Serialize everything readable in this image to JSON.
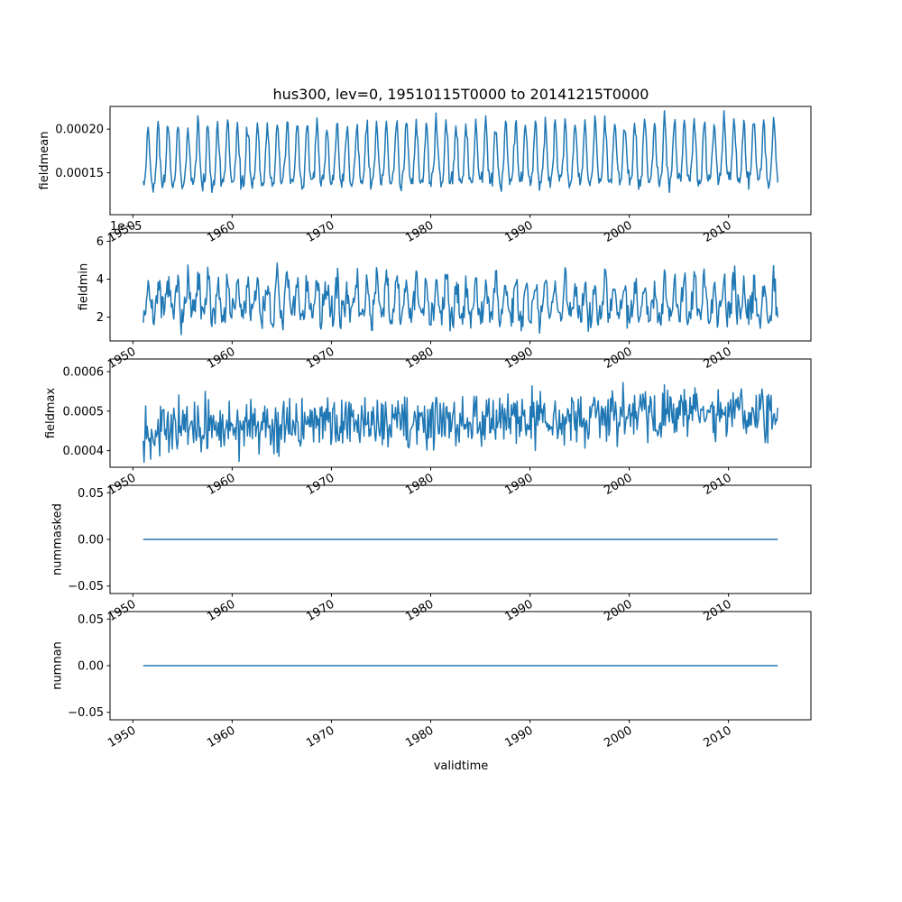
{
  "title": "hus300, lev=0, 19510115T0000 to 20141215T0000",
  "colors": {
    "line": "#1f77b4",
    "axis": "#000000",
    "background": "#ffffff"
  },
  "chart_data": {
    "type": "line",
    "xlabel": "validtime",
    "x": {
      "start": 1951.04,
      "end": 2014.96,
      "samples_per_year": 12,
      "xlim": [
        1947.7,
        2018.3
      ],
      "tick_rotation_deg": 30,
      "xticks": [
        {
          "value": 1950,
          "label": "1950"
        },
        {
          "value": 1960,
          "label": "1960"
        },
        {
          "value": 1970,
          "label": "1970"
        },
        {
          "value": 1980,
          "label": "1980"
        },
        {
          "value": 1990,
          "label": "1990"
        },
        {
          "value": 2000,
          "label": "2000"
        },
        {
          "value": 2010,
          "label": "2010"
        }
      ]
    },
    "panels": [
      {
        "name": "fieldmean",
        "ylabel": "fieldmean",
        "ylim": [
          0.000102,
          0.000226
        ],
        "yticks": [
          {
            "value": 0.0002,
            "label": "0.00020"
          },
          {
            "value": 0.00015,
            "label": "0.00015"
          }
        ],
        "series": {
          "kind": "seasonal",
          "base": 0.000162,
          "amplitude": 3.4e-05,
          "harmonic2": 0.25,
          "phase": -1.9,
          "phase2": 0.8,
          "noise": 5e-06,
          "trend": 6e-06,
          "clip_min": 0.000112,
          "clip_max": 0.000222,
          "seed": 42
        }
      },
      {
        "name": "fieldmin",
        "ylabel": "fieldmin",
        "offset_text": "1e−5",
        "ylim": [
          7.5e-06,
          6.45e-05
        ],
        "yticks": [
          {
            "value": 6e-05,
            "label": "6"
          },
          {
            "value": 4e-05,
            "label": "4"
          },
          {
            "value": 2e-05,
            "label": "2"
          }
        ],
        "series": {
          "kind": "seasonal",
          "base": 2.8e-05,
          "amplitude": 9e-06,
          "harmonic2": 0.3,
          "phase": -1.9,
          "phase2": 0.4,
          "noise": 4.5e-06,
          "trend": 0,
          "clip_min": 1e-05,
          "clip_max": 6.2e-05,
          "seed": 7
        }
      },
      {
        "name": "fieldmax",
        "ylabel": "fieldmax",
        "ylim": [
          0.000358,
          0.000632
        ],
        "yticks": [
          {
            "value": 0.0006,
            "label": "0.0006"
          },
          {
            "value": 0.0005,
            "label": "0.0005"
          },
          {
            "value": 0.0004,
            "label": "0.0004"
          }
        ],
        "series": {
          "kind": "seasonal",
          "base": 0.000455,
          "amplitude": 8e-06,
          "harmonic2": 0,
          "phase": 0,
          "phase2": 0,
          "noise": 3.2e-05,
          "trend": 4.5e-05,
          "clip_min": 0.000365,
          "clip_max": 0.000625,
          "seed": 13
        }
      },
      {
        "name": "nummasked",
        "ylabel": "nummasked",
        "ylim": [
          -0.058,
          0.058
        ],
        "yticks": [
          {
            "value": 0.05,
            "label": "0.05"
          },
          {
            "value": 0.0,
            "label": "0.00"
          },
          {
            "value": -0.05,
            "label": "−0.05"
          }
        ],
        "series": {
          "kind": "constant",
          "value": 0
        }
      },
      {
        "name": "numnan",
        "ylabel": "numnan",
        "ylim": [
          -0.058,
          0.058
        ],
        "yticks": [
          {
            "value": 0.05,
            "label": "0.05"
          },
          {
            "value": 0.0,
            "label": "0.00"
          },
          {
            "value": -0.05,
            "label": "−0.05"
          }
        ],
        "series": {
          "kind": "constant",
          "value": 0
        }
      }
    ]
  }
}
